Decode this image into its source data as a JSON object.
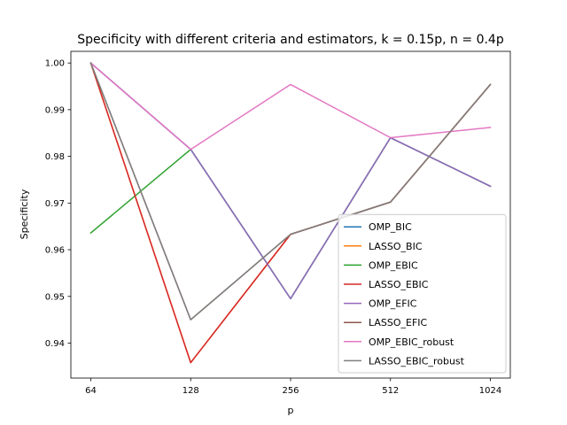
{
  "chart_data": {
    "type": "line",
    "title": "Specificity with different criteria and estimators, k = 0.15p, n = 0.4p",
    "xlabel": "p",
    "ylabel": "Specificity",
    "x": [
      "64",
      "128",
      "256",
      "512",
      "1024"
    ],
    "ylim": [
      0.9325,
      1.0025
    ],
    "yticks": [
      0.94,
      0.95,
      0.96,
      0.97,
      0.98,
      0.99,
      1.0
    ],
    "ytick_labels": [
      "0.94",
      "0.95",
      "0.96",
      "0.97",
      "0.98",
      "0.99",
      "1.00"
    ],
    "grid": false,
    "legend_position": "lower-right",
    "series": [
      {
        "name": "OMP_BIC",
        "color": "#1f77b4",
        "values": [
          1.0,
          0.9815,
          0.9495,
          0.984,
          0.9736
        ]
      },
      {
        "name": "LASSO_BIC",
        "color": "#ff7f0e",
        "values": [
          1.0,
          0.9358,
          0.9633,
          0.9702,
          0.9954
        ]
      },
      {
        "name": "OMP_EBIC",
        "color": "#2ca02c",
        "values": [
          0.9636,
          0.9815,
          0.9495,
          0.984,
          0.9736
        ]
      },
      {
        "name": "LASSO_EBIC",
        "color": "#d62728",
        "values": [
          1.0,
          0.9358,
          0.9633,
          0.9702,
          0.9954
        ]
      },
      {
        "name": "OMP_EFIC",
        "color": "#9467bd",
        "values": [
          1.0,
          0.9815,
          0.9495,
          0.984,
          0.9736
        ]
      },
      {
        "name": "LASSO_EFIC",
        "color": "#8c564b",
        "values": [
          1.0,
          0.945,
          0.9633,
          0.9702,
          0.9954
        ]
      },
      {
        "name": "OMP_EBIC_robust",
        "color": "#e377c2",
        "values": [
          1.0,
          0.9815,
          0.9954,
          0.984,
          0.9862
        ]
      },
      {
        "name": "LASSO_EBIC_robust",
        "color": "#7f7f7f",
        "values": [
          1.0,
          0.945,
          0.9633,
          0.9702,
          0.9954
        ]
      }
    ]
  }
}
